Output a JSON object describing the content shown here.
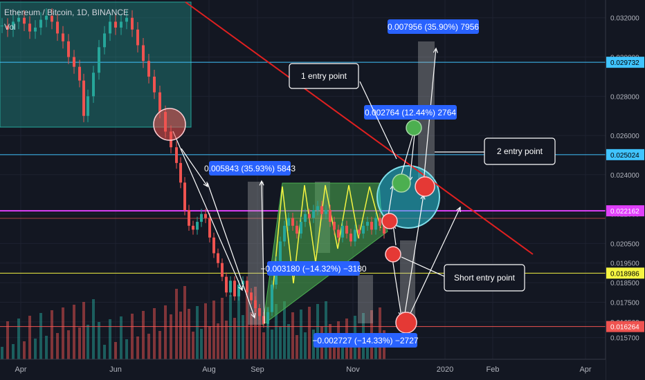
{
  "header": {
    "symbol_line": "Ethereum / Bitcoin, 1D, BINANCE",
    "volume_label": "Vol"
  },
  "colors": {
    "background": "#131722",
    "up": "#26a69a",
    "down": "#ef5350",
    "trendline": "#e02020",
    "magenta_line": "#e040fb",
    "yellow_line": "#f5f542",
    "cyan_line": "#40c4ff",
    "label_box": "#2962ff"
  },
  "chart_data": {
    "type": "candlestick",
    "y_axis": {
      "min": 0.0153,
      "max": 0.0328,
      "ticks": [
        "0.032000",
        "0.030000",
        "0.028000",
        "0.026000",
        "0.024000",
        "0.022000",
        "0.020500",
        "0.019500",
        "0.018500",
        "0.017500",
        "0.016500",
        "0.015700"
      ]
    },
    "x_axis": {
      "ticks": [
        "Apr",
        "Jun",
        "Aug",
        "Sep",
        "Nov",
        "2020",
        "Feb",
        "Apr"
      ]
    },
    "price_tags": [
      {
        "label": "0.029732",
        "value": 0.029732,
        "color": "#40c4ff"
      },
      {
        "label": "0.025024",
        "value": 0.025024,
        "color": "#40c4ff"
      },
      {
        "label": "0.022162",
        "value": 0.022162,
        "color": "#e040fb"
      },
      {
        "label": "0.018986",
        "value": 0.018986,
        "color": "#f5f542"
      },
      {
        "label": "0.016264",
        "value": 0.016264,
        "color": "#ef5350"
      }
    ],
    "measure_labels": [
      {
        "text": "0.007956 (35.90%) 7956"
      },
      {
        "text": "0.002764 (12.44%) 2764"
      },
      {
        "text": "0.005843 (35.93%) 5843"
      },
      {
        "text": "−0.003180 (−14.32%) −3180"
      },
      {
        "text": "−0.002727 (−14.33%) −2727"
      }
    ],
    "callouts": [
      {
        "text": "1 entry point"
      },
      {
        "text": "2 entry point"
      },
      {
        "text": "Short entry point"
      }
    ]
  }
}
